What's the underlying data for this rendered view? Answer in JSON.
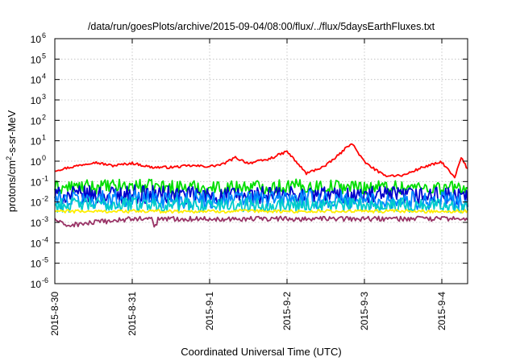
{
  "chart_data": {
    "type": "line",
    "title": "/data/run/goesPlots/archive/2015-09-04/08:00/flux/../flux/5daysEarthFluxes.txt",
    "xlabel": "Coordinated Universal Time (UTC)",
    "ylabel_parts": {
      "prefix": "protons/cm",
      "sup": "2",
      "suffix": "-s-sr-MeV"
    },
    "yscale": "log",
    "ylim": [
      1e-06,
      1000000.0
    ],
    "y_ticks": [
      {
        "base": "10",
        "exp": "-6",
        "value": 1e-06
      },
      {
        "base": "10",
        "exp": "-5",
        "value": 1e-05
      },
      {
        "base": "10",
        "exp": "-4",
        "value": 0.0001
      },
      {
        "base": "10",
        "exp": "-3",
        "value": 0.001
      },
      {
        "base": "10",
        "exp": "-2",
        "value": 0.01
      },
      {
        "base": "10",
        "exp": "-1",
        "value": 0.1
      },
      {
        "base": "10",
        "exp": "0",
        "value": 1
      },
      {
        "base": "10",
        "exp": "1",
        "value": 10
      },
      {
        "base": "10",
        "exp": "2",
        "value": 100
      },
      {
        "base": "10",
        "exp": "3",
        "value": 1000
      },
      {
        "base": "10",
        "exp": "4",
        "value": 10000
      },
      {
        "base": "10",
        "exp": "5",
        "value": 100000
      },
      {
        "base": "10",
        "exp": "6",
        "value": 1000000
      }
    ],
    "xlim": [
      "2015-08-30T00:00",
      "2015-09-04T08:00"
    ],
    "x_ticks": [
      {
        "label": "2015-8-30",
        "date": "2015-08-30T00:00"
      },
      {
        "label": "2015-8-31",
        "date": "2015-08-31T00:00"
      },
      {
        "label": "2015-9-1",
        "date": "2015-09-01T00:00"
      },
      {
        "label": "2015-9-2",
        "date": "2015-09-02T00:00"
      },
      {
        "label": "2015-9-3",
        "date": "2015-09-03T00:00"
      },
      {
        "label": "2015-9-4",
        "date": "2015-09-04T00:00"
      }
    ],
    "grid": true,
    "legend": "none",
    "series": [
      {
        "color": "#ff0000",
        "x": [
          "2015-08-30T00:00",
          "2015-08-30T06:00",
          "2015-08-30T12:00",
          "2015-08-30T18:00",
          "2015-08-31T00:00",
          "2015-08-31T06:00",
          "2015-08-31T12:00",
          "2015-08-31T18:00",
          "2015-09-01T00:00",
          "2015-09-01T04:00",
          "2015-09-01T08:00",
          "2015-09-01T12:00",
          "2015-09-01T18:00",
          "2015-09-02T00:00",
          "2015-09-02T06:00",
          "2015-09-02T12:00",
          "2015-09-02T16:00",
          "2015-09-02T20:00",
          "2015-09-03T00:00",
          "2015-09-03T06:00",
          "2015-09-03T12:00",
          "2015-09-03T18:00",
          "2015-09-04T00:00",
          "2015-09-04T04:00",
          "2015-09-04T06:00",
          "2015-09-04T08:00"
        ],
        "y": [
          0.35,
          0.55,
          0.9,
          0.6,
          0.8,
          0.5,
          0.5,
          0.6,
          0.55,
          0.7,
          1.5,
          0.8,
          1.2,
          3.0,
          0.25,
          0.6,
          2.0,
          8.0,
          0.9,
          0.2,
          0.2,
          0.5,
          0.9,
          0.15,
          1.5,
          0.4
        ]
      },
      {
        "color": "#00dd00",
        "x": [
          "2015-08-30T00:00",
          "2015-08-31T00:00",
          "2015-09-01T00:00",
          "2015-09-02T00:00",
          "2015-09-03T00:00",
          "2015-09-04T00:00",
          "2015-09-04T08:00"
        ],
        "y": [
          0.05,
          0.06,
          0.05,
          0.06,
          0.055,
          0.05,
          0.05
        ]
      },
      {
        "color": "#0000cc",
        "x": [
          "2015-08-30T00:00",
          "2015-08-31T00:00",
          "2015-09-01T00:00",
          "2015-09-02T00:00",
          "2015-09-03T00:00",
          "2015-09-04T00:00",
          "2015-09-04T08:00"
        ],
        "y": [
          0.02,
          0.025,
          0.02,
          0.022,
          0.02,
          0.02,
          0.015
        ]
      },
      {
        "color": "#0088ff",
        "x": [
          "2015-08-30T00:00",
          "2015-08-31T00:00",
          "2015-09-01T00:00",
          "2015-09-02T00:00",
          "2015-09-03T00:00",
          "2015-09-04T00:00",
          "2015-09-04T08:00"
        ],
        "y": [
          0.012,
          0.015,
          0.013,
          0.014,
          0.012,
          0.012,
          0.01
        ]
      },
      {
        "color": "#00cccc",
        "x": [
          "2015-08-30T00:00",
          "2015-08-31T00:00",
          "2015-09-01T00:00",
          "2015-09-02T00:00",
          "2015-09-03T00:00",
          "2015-09-04T00:00",
          "2015-09-04T08:00"
        ],
        "y": [
          0.007,
          0.008,
          0.007,
          0.0075,
          0.007,
          0.007,
          0.0065
        ]
      },
      {
        "color": "#ffee00",
        "x": [
          "2015-08-30T00:00",
          "2015-08-31T00:00",
          "2015-09-01T00:00",
          "2015-09-02T00:00",
          "2015-09-03T00:00",
          "2015-09-04T00:00",
          "2015-09-04T08:00"
        ],
        "y": [
          0.0035,
          0.0035,
          0.0035,
          0.0035,
          0.0035,
          0.0035,
          0.0035
        ]
      },
      {
        "color": "#993366",
        "x": [
          "2015-08-30T00:00",
          "2015-08-30T03:00",
          "2015-08-31T00:00",
          "2015-08-31T06:00",
          "2015-08-31T07:00",
          "2015-08-31T08:00",
          "2015-09-01T00:00",
          "2015-09-02T00:00",
          "2015-09-03T00:00",
          "2015-09-04T00:00",
          "2015-09-04T08:00"
        ],
        "y": [
          0.0015,
          0.0007,
          0.0015,
          0.0015,
          0.0005,
          0.0015,
          0.0015,
          0.0015,
          0.0015,
          0.0015,
          0.0015
        ]
      }
    ]
  }
}
